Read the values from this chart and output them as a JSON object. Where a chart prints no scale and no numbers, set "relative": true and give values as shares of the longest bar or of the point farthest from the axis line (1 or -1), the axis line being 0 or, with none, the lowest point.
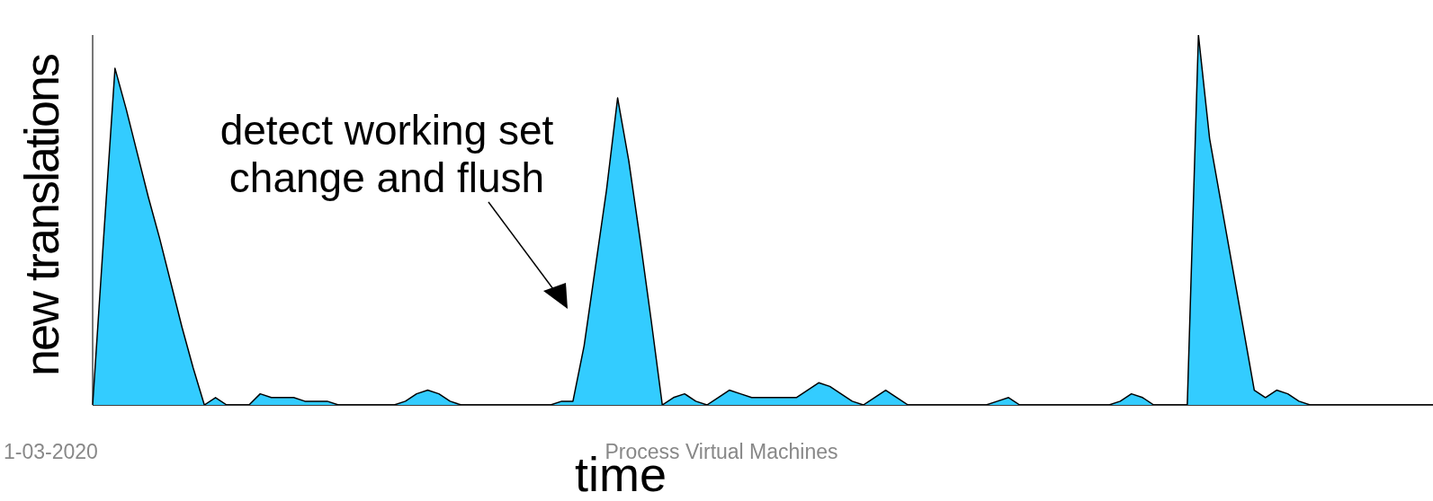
{
  "chart_data": {
    "type": "area",
    "relative": true,
    "xlabel": "time",
    "ylabel": "new translations",
    "categories": [
      null,
      null,
      null,
      null,
      null,
      null,
      null,
      null,
      null,
      null,
      null,
      null,
      null,
      null,
      null,
      null,
      null,
      null,
      null,
      null,
      null,
      null,
      null,
      null,
      null,
      null,
      null,
      null,
      null,
      null,
      null,
      null,
      null,
      null,
      null,
      null,
      null,
      null,
      null,
      null,
      null,
      null,
      null,
      null,
      null,
      null,
      null,
      null,
      null,
      null,
      null,
      null,
      null,
      null,
      null,
      null,
      null,
      null,
      null,
      null,
      null,
      null,
      null,
      null,
      null,
      null,
      null,
      null,
      null,
      null,
      null,
      null,
      null,
      null,
      null,
      null,
      null,
      null,
      null,
      null,
      null,
      null,
      null,
      null,
      null,
      null,
      null,
      null,
      null,
      null,
      null,
      null,
      null,
      null,
      null,
      null,
      null,
      null,
      null,
      null,
      null,
      null,
      null,
      null,
      null,
      null,
      null,
      null,
      null,
      null,
      null,
      null,
      null,
      null,
      null,
      null,
      null,
      null,
      null,
      null,
      null
    ],
    "series": [
      {
        "color": "#33ccff",
        "values": [
          0,
          0.46,
          0.91,
          0.8,
          0.68,
          0.56,
          0.45,
          0.33,
          0.21,
          0.1,
          0,
          0.02,
          0,
          0,
          0,
          0.03,
          0.02,
          0.02,
          0.02,
          0.01,
          0.01,
          0.01,
          0,
          0,
          0,
          0,
          0,
          0,
          0.01,
          0.03,
          0.04,
          0.03,
          0.01,
          0,
          0,
          0,
          0,
          0,
          0,
          0,
          0,
          0,
          0.01,
          0.01,
          0.16,
          0.37,
          0.58,
          0.83,
          0.66,
          0.45,
          0.23,
          0,
          0.02,
          0.03,
          0.01,
          0,
          0.02,
          0.04,
          0.03,
          0.02,
          0.02,
          0.02,
          0.02,
          0.02,
          0.04,
          0.06,
          0.05,
          0.03,
          0.01,
          0,
          0.02,
          0.04,
          0.02,
          0,
          0,
          0,
          0,
          0,
          0,
          0,
          0,
          0.01,
          0.02,
          0,
          0,
          0,
          0,
          0,
          0,
          0,
          0,
          0,
          0.01,
          0.03,
          0.02,
          0,
          0,
          0,
          0,
          1,
          0.72,
          0.55,
          0.38,
          0.21,
          0.04,
          0.02,
          0.04,
          0.03,
          0.01,
          0,
          0,
          0,
          0,
          0,
          0,
          0,
          0,
          0,
          0,
          0,
          0
        ]
      }
    ],
    "annotations": [
      "detect working set\nchange and flush",
      "1-03-2020",
      "Process Virtual Machines"
    ],
    "legend": false
  }
}
